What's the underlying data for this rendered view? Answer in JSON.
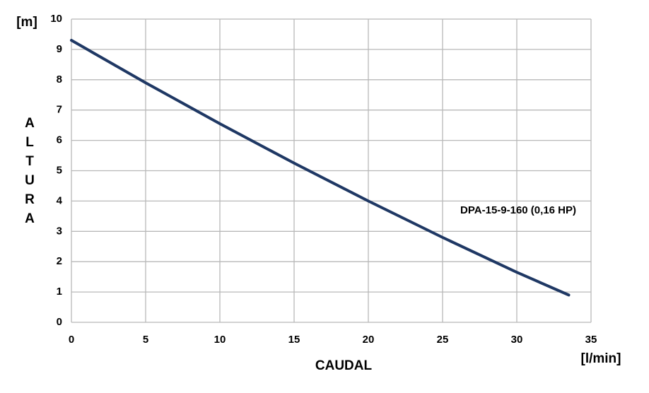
{
  "chart_data": {
    "type": "line",
    "x_label": "CAUDAL",
    "x_unit": "[l/min]",
    "y_label": "ALTURA",
    "y_unit": "[m]",
    "x": [
      0,
      5,
      10,
      15,
      20,
      25,
      30,
      33.5
    ],
    "series": [
      {
        "name": "DPA-15-9-160 (0,16 HP)",
        "color": "#1f3864",
        "values": [
          9.3,
          7.9,
          6.55,
          5.25,
          4.0,
          2.8,
          1.65,
          0.9
        ]
      }
    ],
    "xlim": [
      0,
      35
    ],
    "xticks": [
      0,
      5,
      10,
      15,
      20,
      25,
      30,
      35
    ],
    "ylim": [
      0,
      10
    ],
    "yticks": [
      0,
      1,
      2,
      3,
      4,
      5,
      6,
      7,
      8,
      9,
      10
    ],
    "grid": true
  }
}
